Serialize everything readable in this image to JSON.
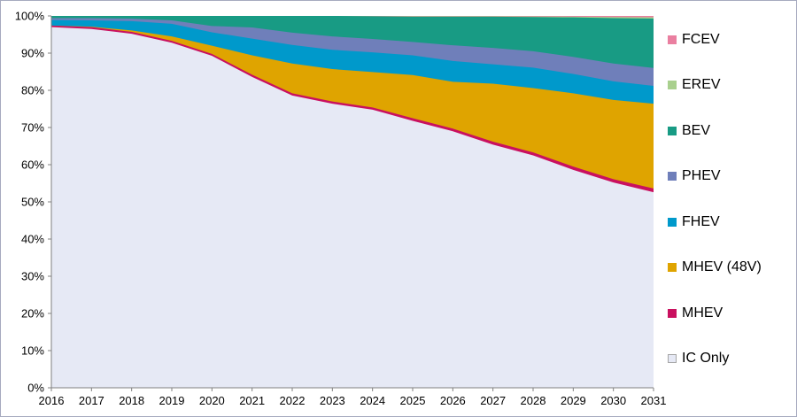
{
  "chart_data": {
    "type": "area",
    "stacked": true,
    "units": "percent-share",
    "title": "",
    "xlabel": "",
    "ylabel": "",
    "grid": false,
    "legend_position": "right",
    "x": [
      2016,
      2017,
      2018,
      2019,
      2020,
      2021,
      2022,
      2023,
      2024,
      2025,
      2026,
      2027,
      2028,
      2029,
      2030,
      2031
    ],
    "series": [
      {
        "name": "IC Only",
        "color": "#e6e9f5",
        "swatch_border": "#a6a6a6",
        "values": [
          97.0,
          96.5,
          95.2,
          92.8,
          89.3,
          83.6,
          78.6,
          76.4,
          74.8,
          71.8,
          69.0,
          65.4,
          62.5,
          58.6,
          55.2,
          52.6
        ]
      },
      {
        "name": "MHEV",
        "color": "#c9105f",
        "values": [
          0.4,
          0.5,
          0.5,
          0.5,
          0.5,
          0.6,
          0.6,
          0.6,
          0.6,
          0.7,
          0.7,
          0.8,
          0.8,
          0.9,
          0.9,
          1.0
        ]
      },
      {
        "name": "MHEV (48V)",
        "color": "#dfa400",
        "values": [
          0.0,
          0.1,
          0.4,
          1.2,
          2.2,
          5.2,
          8.0,
          8.7,
          9.5,
          11.6,
          12.6,
          15.6,
          17.3,
          19.7,
          21.3,
          22.8
        ]
      },
      {
        "name": "FHEV",
        "color": "#0099cb",
        "values": [
          1.5,
          1.7,
          2.5,
          3.4,
          3.6,
          4.5,
          5.0,
          5.2,
          5.3,
          5.3,
          5.6,
          5.2,
          5.5,
          5.2,
          5.0,
          4.8
        ]
      },
      {
        "name": "PHEV",
        "color": "#6f7fba",
        "values": [
          0.5,
          0.6,
          0.7,
          0.9,
          1.7,
          3.0,
          3.3,
          3.6,
          3.6,
          3.6,
          4.2,
          4.4,
          4.4,
          4.6,
          4.8,
          4.8
        ]
      },
      {
        "name": "BEV",
        "color": "#189b84",
        "values": [
          0.6,
          0.6,
          0.7,
          1.2,
          2.7,
          3.1,
          4.5,
          5.5,
          6.1,
          6.8,
          7.7,
          8.4,
          9.2,
          10.6,
          12.2,
          13.3
        ]
      },
      {
        "name": "EREV",
        "color": "#a9d08e",
        "values": [
          0.0,
          0.0,
          0.0,
          0.0,
          0.0,
          0.0,
          0.0,
          0.0,
          0.05,
          0.1,
          0.1,
          0.1,
          0.15,
          0.2,
          0.3,
          0.35
        ]
      },
      {
        "name": "FCEV",
        "color": "#ea7fa0",
        "values": [
          0.0,
          0.0,
          0.0,
          0.0,
          0.0,
          0.0,
          0.0,
          0.0,
          0.05,
          0.1,
          0.1,
          0.1,
          0.15,
          0.2,
          0.3,
          0.35
        ]
      }
    ],
    "legend_order_top_to_bottom": [
      "FCEV",
      "EREV",
      "BEV",
      "PHEV",
      "FHEV",
      "MHEV (48V)",
      "MHEV",
      "IC Only"
    ],
    "y_tick_labels": [
      "0%",
      "10%",
      "20%",
      "30%",
      "40%",
      "50%",
      "60%",
      "70%",
      "80%",
      "90%",
      "100%"
    ],
    "ylim": [
      0,
      100
    ]
  },
  "style": {
    "axis_color": "#808080",
    "label_color": "#000000",
    "frame_border_color": "#a6aabf",
    "background": "#ffffff"
  }
}
